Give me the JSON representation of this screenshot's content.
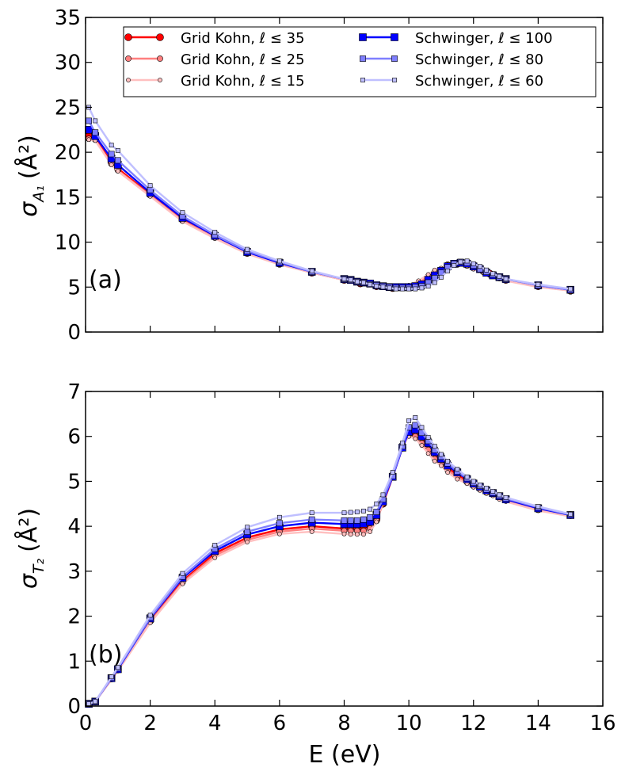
{
  "chart_data": [
    {
      "type": "line",
      "panel_label": "(a)",
      "ylabel_main": "σ",
      "ylabel_sub": "A₁",
      "ylabel_units": "(Å²)",
      "xlim": [
        0,
        16
      ],
      "ylim": [
        0,
        35
      ],
      "yticks": [
        "0",
        "5",
        "10",
        "15",
        "20",
        "25",
        "30",
        "35"
      ],
      "legend": {
        "position": "top",
        "entries": [
          {
            "label": "Grid Kohn, ℓ ≤ 35",
            "series": 0
          },
          {
            "label": "Grid Kohn, ℓ ≤ 25",
            "series": 1
          },
          {
            "label": "Grid Kohn, ℓ ≤ 15",
            "series": 2
          },
          {
            "label": "Schwinger, ℓ ≤ 100",
            "series": 3
          },
          {
            "label": "Schwinger, ℓ ≤ 80",
            "series": 4
          },
          {
            "label": "Schwinger, ℓ ≤ 60",
            "series": 5
          }
        ]
      },
      "series": [
        {
          "name": "Grid Kohn, ℓ ≤ 35",
          "color": "#ff0000",
          "marker": "circle",
          "size": 4.5,
          "x": [
            0.1,
            0.3,
            0.8,
            1,
            2,
            3,
            4,
            5,
            6,
            7,
            8,
            8.5,
            9,
            9.5,
            10,
            10.3,
            10.6,
            10.8,
            11,
            11.2,
            11.5,
            11.8,
            12,
            12.3,
            12.5,
            12.8,
            13,
            14,
            15
          ],
          "y": [
            21.8,
            21.5,
            18.9,
            18.2,
            15.3,
            12.5,
            10.6,
            8.8,
            7.6,
            6.6,
            5.8,
            5.4,
            5.1,
            4.9,
            5.0,
            5.3,
            6.0,
            6.5,
            6.9,
            7.4,
            7.6,
            7.5,
            7.2,
            6.8,
            6.5,
            6.1,
            5.8,
            5.1,
            4.6
          ]
        },
        {
          "name": "Grid Kohn, ℓ ≤ 25",
          "color": "#ff7f7f",
          "marker": "circle",
          "size": 3.6,
          "x": [
            0.1,
            0.3,
            0.8,
            1,
            2,
            3,
            4,
            5,
            6,
            7,
            8,
            8.5,
            9,
            9.5,
            10,
            10.3,
            10.6,
            10.8,
            11,
            11.2,
            11.5,
            11.8,
            12,
            12.3,
            12.5,
            12.8,
            13,
            14,
            15
          ],
          "y": [
            21.5,
            21.4,
            18.7,
            18.0,
            15.2,
            12.4,
            10.5,
            8.8,
            7.6,
            6.6,
            5.8,
            5.4,
            5.1,
            4.9,
            5.1,
            5.5,
            6.2,
            6.7,
            7.0,
            7.5,
            7.6,
            7.4,
            7.1,
            6.7,
            6.4,
            6.0,
            5.8,
            5.1,
            4.6
          ]
        },
        {
          "name": "Grid Kohn, ℓ ≤ 15",
          "color": "#ffbfbf",
          "marker": "circle",
          "size": 2.6,
          "x": [
            0.1,
            0.3,
            0.8,
            1,
            2,
            3,
            4,
            5,
            6,
            7,
            8,
            8.5,
            9,
            9.5,
            10,
            10.3,
            10.6,
            10.8,
            11,
            11.2,
            11.5,
            11.8,
            12,
            12.3,
            12.5,
            12.8,
            13,
            14,
            15
          ],
          "y": [
            21.4,
            21.3,
            18.6,
            17.9,
            15.1,
            12.3,
            10.4,
            8.7,
            7.5,
            6.6,
            5.8,
            5.4,
            5.1,
            4.9,
            5.2,
            5.7,
            6.4,
            6.9,
            7.1,
            7.5,
            7.6,
            7.3,
            7.0,
            6.6,
            6.3,
            6.0,
            5.7,
            5.0,
            4.6
          ]
        },
        {
          "name": "Schwinger, ℓ ≤ 100",
          "color": "#0000ff",
          "marker": "square",
          "size": 4.5,
          "x": [
            0.1,
            0.3,
            0.8,
            1,
            2,
            3,
            4,
            5,
            6,
            7,
            8,
            8.2,
            8.4,
            8.6,
            8.8,
            9,
            9.2,
            9.4,
            9.6,
            9.8,
            10,
            10.2,
            10.4,
            10.6,
            10.8,
            11,
            11.2,
            11.4,
            11.6,
            11.8,
            12,
            12.2,
            12.4,
            12.6,
            12.8,
            13,
            14,
            15
          ],
          "y": [
            22.5,
            21.8,
            19.3,
            18.6,
            15.5,
            12.7,
            10.7,
            8.9,
            7.7,
            6.7,
            5.9,
            5.8,
            5.6,
            5.5,
            5.4,
            5.2,
            5.1,
            5.0,
            5.0,
            5.0,
            5.0,
            5.1,
            5.3,
            5.8,
            6.3,
            6.8,
            7.3,
            7.6,
            7.7,
            7.6,
            7.3,
            7.0,
            6.6,
            6.3,
            6.1,
            5.9,
            5.2,
            4.7
          ]
        },
        {
          "name": "Schwinger, ℓ ≤ 80",
          "color": "#7f7fff",
          "marker": "square",
          "size": 3.6,
          "x": [
            0.1,
            0.3,
            0.8,
            1,
            2,
            3,
            4,
            5,
            6,
            7,
            8,
            8.2,
            8.4,
            8.6,
            8.8,
            9,
            9.2,
            9.4,
            9.6,
            9.8,
            10,
            10.2,
            10.4,
            10.6,
            10.8,
            11,
            11.2,
            11.4,
            11.6,
            11.8,
            12,
            12.2,
            12.4,
            12.6,
            12.8,
            13,
            14,
            15
          ],
          "y": [
            23.5,
            22.2,
            19.8,
            19.1,
            15.8,
            12.9,
            10.8,
            9.0,
            7.8,
            6.7,
            5.9,
            5.8,
            5.6,
            5.5,
            5.3,
            5.2,
            5.1,
            5.0,
            4.9,
            4.9,
            4.9,
            5.0,
            5.1,
            5.5,
            6.0,
            6.6,
            7.2,
            7.6,
            7.8,
            7.7,
            7.4,
            7.0,
            6.7,
            6.4,
            6.1,
            5.9,
            5.2,
            4.7
          ]
        },
        {
          "name": "Schwinger, ℓ ≤ 60",
          "color": "#bfbfff",
          "marker": "square",
          "size": 2.6,
          "x": [
            0.1,
            0.3,
            0.8,
            1,
            2,
            3,
            4,
            5,
            6,
            7,
            8,
            8.2,
            8.4,
            8.6,
            8.8,
            9,
            9.2,
            9.4,
            9.6,
            9.8,
            10,
            10.2,
            10.4,
            10.6,
            10.8,
            11,
            11.2,
            11.4,
            11.6,
            11.8,
            12,
            12.2,
            12.4,
            12.6,
            12.8,
            13,
            14,
            15
          ],
          "y": [
            25.0,
            23.5,
            20.8,
            20.2,
            16.3,
            13.3,
            11.1,
            9.2,
            7.9,
            6.8,
            5.9,
            5.8,
            5.6,
            5.5,
            5.3,
            5.1,
            5.0,
            4.9,
            4.8,
            4.8,
            4.8,
            4.8,
            4.9,
            5.1,
            5.5,
            6.1,
            6.8,
            7.4,
            7.8,
            7.9,
            7.6,
            7.3,
            6.9,
            6.5,
            6.2,
            5.9,
            5.3,
            4.8
          ]
        }
      ]
    },
    {
      "type": "line",
      "panel_label": "(b)",
      "ylabel_main": "σ",
      "ylabel_sub": "T₂",
      "ylabel_units": "(Å²)",
      "xlabel": "E (eV)",
      "xlim": [
        0,
        16
      ],
      "ylim": [
        0,
        7
      ],
      "xticks": [
        "0",
        "2",
        "4",
        "6",
        "8",
        "10",
        "12",
        "14",
        "16"
      ],
      "yticks": [
        "0",
        "1",
        "2",
        "3",
        "4",
        "5",
        "6",
        "7"
      ],
      "series": [
        {
          "name": "Grid Kohn, ℓ ≤ 35",
          "color": "#ff0000",
          "marker": "circle",
          "size": 4.5,
          "x": [
            0.1,
            0.3,
            0.8,
            1,
            2,
            3,
            4,
            5,
            6,
            7,
            8,
            8.2,
            8.4,
            8.6,
            8.8,
            9,
            9.2,
            9.5,
            9.8,
            10,
            10.2,
            10.4,
            10.6,
            10.8,
            11,
            11.2,
            11.5,
            11.8,
            12,
            12.2,
            12.4,
            12.6,
            12.8,
            13,
            14,
            15
          ],
          "y": [
            0.05,
            0.1,
            0.62,
            0.82,
            1.9,
            2.78,
            3.4,
            3.75,
            3.93,
            4.0,
            3.95,
            3.95,
            3.95,
            3.95,
            4.0,
            4.15,
            4.5,
            5.1,
            5.75,
            6.05,
            6.05,
            5.9,
            5.75,
            5.55,
            5.45,
            5.3,
            5.15,
            5.0,
            4.92,
            4.85,
            4.78,
            4.72,
            4.65,
            4.6,
            4.38,
            4.25
          ]
        },
        {
          "name": "Grid Kohn, ℓ ≤ 25",
          "color": "#ff7f7f",
          "marker": "circle",
          "size": 3.6,
          "x": [
            0.1,
            0.3,
            0.8,
            1,
            2,
            3,
            4,
            5,
            6,
            7,
            8,
            8.2,
            8.4,
            8.6,
            8.8,
            9,
            9.2,
            9.5,
            9.8,
            10,
            10.2,
            10.4,
            10.6,
            10.8,
            11,
            11.2,
            11.5,
            11.8,
            12,
            12.2,
            12.4,
            12.6,
            12.8,
            13,
            14,
            15
          ],
          "y": [
            0.05,
            0.1,
            0.6,
            0.8,
            1.88,
            2.75,
            3.35,
            3.7,
            3.88,
            3.95,
            3.9,
            3.9,
            3.9,
            3.9,
            3.95,
            4.12,
            4.5,
            5.15,
            5.78,
            6.02,
            6.0,
            5.85,
            5.7,
            5.5,
            5.4,
            5.25,
            5.1,
            4.98,
            4.9,
            4.82,
            4.75,
            4.7,
            4.63,
            4.58,
            4.37,
            4.24
          ]
        },
        {
          "name": "Grid Kohn, ℓ ≤ 15",
          "color": "#ffbfbf",
          "marker": "circle",
          "size": 2.6,
          "x": [
            0.1,
            0.3,
            0.8,
            1,
            2,
            3,
            4,
            5,
            6,
            7,
            8,
            8.2,
            8.4,
            8.6,
            8.8,
            9,
            9.2,
            9.5,
            9.8,
            10,
            10.2,
            10.4,
            10.6,
            10.8,
            11,
            11.2,
            11.5,
            11.8,
            12,
            12.2,
            12.4,
            12.6,
            12.8,
            13,
            14,
            15
          ],
          "y": [
            0.05,
            0.1,
            0.58,
            0.78,
            1.85,
            2.72,
            3.3,
            3.65,
            3.83,
            3.88,
            3.83,
            3.82,
            3.82,
            3.82,
            3.88,
            4.1,
            4.55,
            5.2,
            5.8,
            6.0,
            5.95,
            5.8,
            5.62,
            5.45,
            5.35,
            5.2,
            5.05,
            4.95,
            4.87,
            4.8,
            4.73,
            4.68,
            4.6,
            4.55,
            4.35,
            4.22
          ]
        },
        {
          "name": "Schwinger, ℓ ≤ 100",
          "color": "#0000ff",
          "marker": "square",
          "size": 4.5,
          "x": [
            0.1,
            0.3,
            0.8,
            1,
            2,
            3,
            4,
            5,
            6,
            7,
            8,
            8.2,
            8.4,
            8.6,
            8.8,
            9,
            9.2,
            9.5,
            9.8,
            10,
            10.2,
            10.4,
            10.6,
            10.8,
            11,
            11.2,
            11.5,
            11.8,
            12,
            12.2,
            12.4,
            12.6,
            12.8,
            13,
            14,
            15
          ],
          "y": [
            0.05,
            0.1,
            0.62,
            0.82,
            1.95,
            2.85,
            3.45,
            3.82,
            4.0,
            4.08,
            4.05,
            4.05,
            4.05,
            4.06,
            4.1,
            4.25,
            4.55,
            5.1,
            5.75,
            6.1,
            6.15,
            6.0,
            5.85,
            5.65,
            5.5,
            5.35,
            5.2,
            5.05,
            4.95,
            4.88,
            4.8,
            4.74,
            4.67,
            4.6,
            4.4,
            4.25
          ]
        },
        {
          "name": "Schwinger, ℓ ≤ 80",
          "color": "#7f7fff",
          "marker": "square",
          "size": 3.6,
          "x": [
            0.1,
            0.3,
            0.8,
            1,
            2,
            3,
            4,
            5,
            6,
            7,
            8,
            8.2,
            8.4,
            8.6,
            8.8,
            9,
            9.2,
            9.5,
            9.8,
            10,
            10.2,
            10.4,
            10.6,
            10.8,
            11,
            11.2,
            11.5,
            11.8,
            12,
            12.2,
            12.4,
            12.6,
            12.8,
            13,
            14,
            15
          ],
          "y": [
            0.05,
            0.1,
            0.63,
            0.84,
            1.97,
            2.88,
            3.5,
            3.88,
            4.07,
            4.15,
            4.13,
            4.13,
            4.13,
            4.15,
            4.2,
            4.32,
            4.6,
            5.12,
            5.78,
            6.2,
            6.25,
            6.08,
            5.9,
            5.7,
            5.55,
            5.4,
            5.22,
            5.07,
            4.97,
            4.9,
            4.82,
            4.75,
            4.68,
            4.62,
            4.42,
            4.26
          ]
        },
        {
          "name": "Schwinger, ℓ ≤ 60",
          "color": "#bfbfff",
          "marker": "square",
          "size": 2.6,
          "x": [
            0.1,
            0.3,
            0.8,
            1,
            2,
            3,
            4,
            5,
            6,
            7,
            8,
            8.2,
            8.4,
            8.6,
            8.8,
            9,
            9.2,
            9.5,
            9.8,
            10,
            10.2,
            10.4,
            10.6,
            10.8,
            11,
            11.2,
            11.5,
            11.8,
            12,
            12.2,
            12.4,
            12.6,
            12.8,
            13,
            14,
            15
          ],
          "y": [
            0.05,
            0.1,
            0.65,
            0.86,
            2.02,
            2.95,
            3.58,
            3.98,
            4.2,
            4.3,
            4.3,
            4.31,
            4.32,
            4.34,
            4.38,
            4.5,
            4.7,
            5.2,
            5.85,
            6.35,
            6.42,
            6.2,
            5.98,
            5.78,
            5.6,
            5.45,
            5.27,
            5.1,
            5.0,
            4.92,
            4.85,
            4.78,
            4.7,
            4.64,
            4.44,
            4.27
          ]
        }
      ]
    }
  ]
}
